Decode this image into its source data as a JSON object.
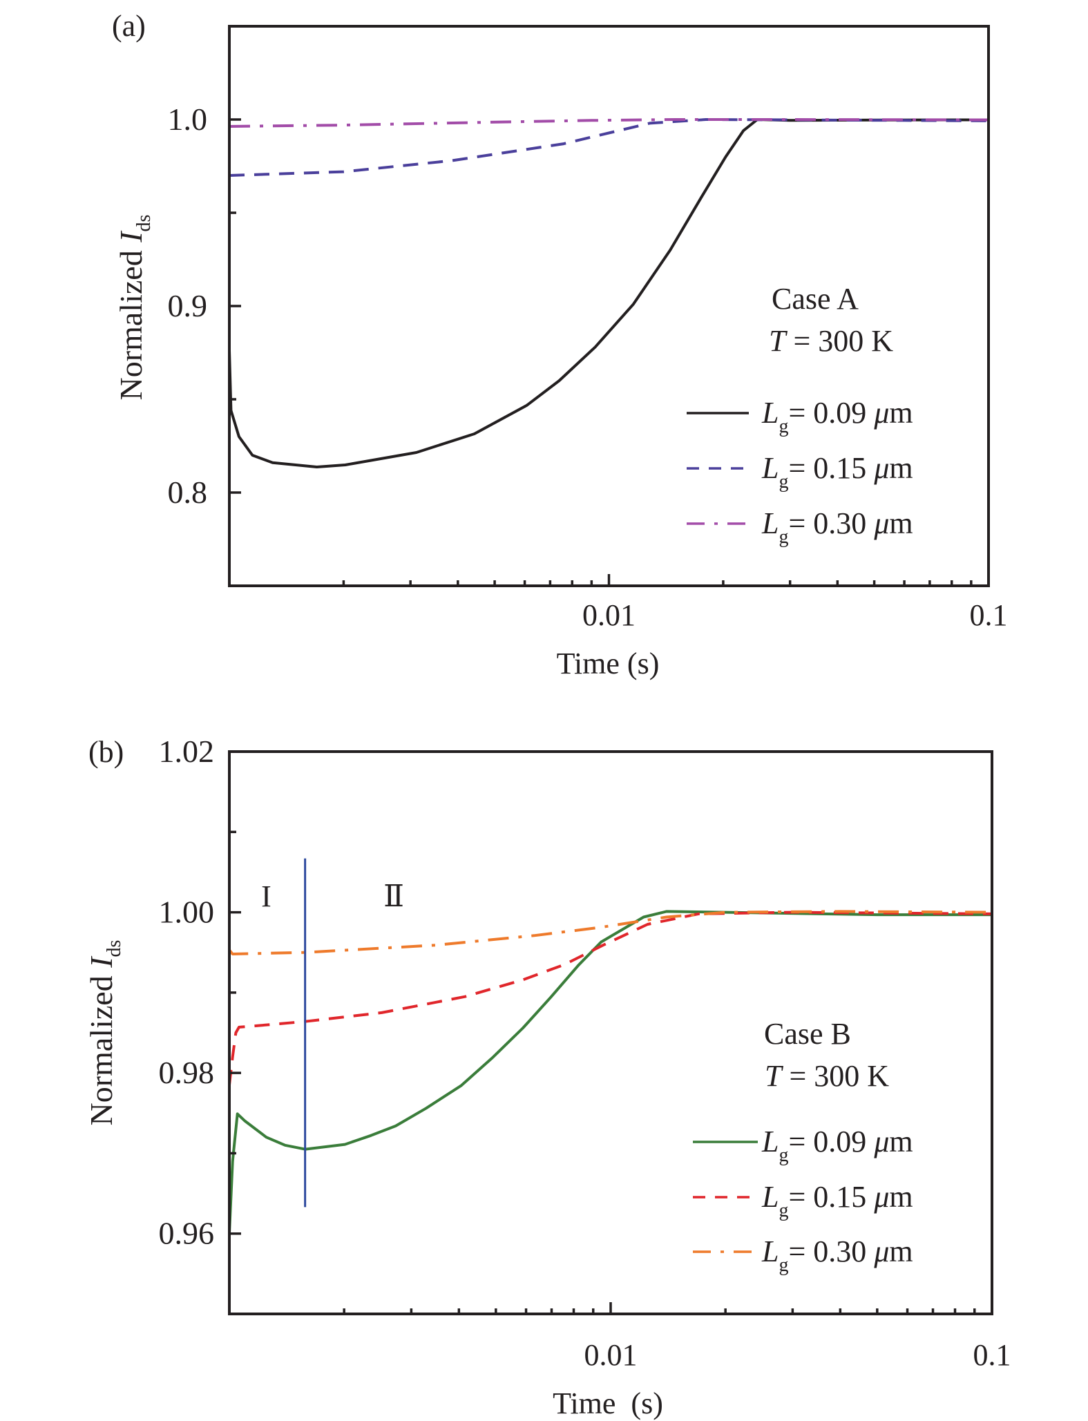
{
  "chart_data": [
    {
      "panel_label": "(a)",
      "type": "line",
      "xlabel": "Time (s)",
      "ylabel": "Normalized I_ds",
      "ylabel_main": "Normalized ",
      "ylabel_italic": "I",
      "ylabel_sub": "ds",
      "xscale": "log",
      "xlim": [
        0.001,
        0.1
      ],
      "ylim": [
        0.75,
        1.05
      ],
      "xticks": [
        {
          "value": 0.01,
          "label": "0.01"
        },
        {
          "value": 0.1,
          "label": "0.1"
        }
      ],
      "yticks": [
        {
          "value": 1.0,
          "label": "1.0"
        },
        {
          "value": 0.9,
          "label": "0.9"
        },
        {
          "value": 0.8,
          "label": "0.8"
        }
      ],
      "yminor": [
        0.95,
        0.85
      ],
      "grid": false,
      "annotation": {
        "line1": "Case A",
        "line2_italic": "T",
        "line2_rest": " = 300 K"
      },
      "legend_position": "right",
      "series": [
        {
          "name": "L_g = 0.09 μm",
          "label_italic": "L",
          "label_sub": "g",
          "label_rest": "= 0.09 ",
          "label_mu": "μ",
          "label_unit": "m",
          "color": "#231f20",
          "dash": "solid",
          "x": [
            0.001,
            0.00101,
            0.00106,
            0.00115,
            0.0013,
            0.0017,
            0.00202,
            0.00311,
            0.00442,
            0.00607,
            0.0074,
            0.0092,
            0.0116,
            0.0145,
            0.0176,
            0.0203,
            0.0226,
            0.0246,
            0.03,
            0.05,
            0.1
          ],
          "y": [
            0.876,
            0.844,
            0.83,
            0.82,
            0.816,
            0.8137,
            0.8148,
            0.8215,
            0.8315,
            0.8467,
            0.86,
            0.878,
            0.901,
            0.93,
            0.959,
            0.98,
            0.994,
            1.0,
            0.9995,
            0.9997,
            0.9998
          ]
        },
        {
          "name": "L_g = 0.15 μm",
          "label_italic": "L",
          "label_sub": "g",
          "label_rest": "= 0.15 ",
          "label_mu": "μ",
          "label_unit": "m",
          "color": "#4a3f9b",
          "dash": "dashed",
          "x": [
            0.001,
            0.002,
            0.00387,
            0.0076,
            0.0128,
            0.018,
            0.03,
            0.06,
            0.1
          ],
          "y": [
            0.97,
            0.972,
            0.978,
            0.987,
            0.998,
            1.0,
            0.9998,
            0.9995,
            0.9993
          ]
        },
        {
          "name": "L_g = 0.30 μm",
          "label_italic": "L",
          "label_sub": "g",
          "label_rest": "= 0.30 ",
          "label_mu": "μ",
          "label_unit": "m",
          "color": "#a24ca8",
          "dash": "dashdot",
          "x": [
            0.001,
            0.002,
            0.0048,
            0.009,
            0.015,
            0.03,
            0.1
          ],
          "y": [
            0.9963,
            0.997,
            0.9985,
            0.9995,
            1.0,
            1.0,
            0.9998
          ]
        }
      ]
    },
    {
      "panel_label": "(b)",
      "type": "line",
      "xlabel": "Time  (s)",
      "ylabel": "Normalized I_ds",
      "ylabel_main": "Normalized ",
      "ylabel_italic": "I",
      "ylabel_sub": "ds",
      "xscale": "log",
      "xlim": [
        0.001,
        0.1
      ],
      "ylim": [
        0.95,
        1.02
      ],
      "xticks": [
        {
          "value": 0.01,
          "label": "0.01"
        },
        {
          "value": 0.1,
          "label": "0.1"
        }
      ],
      "yticks": [
        {
          "value": 1.02,
          "label": "1.02"
        },
        {
          "value": 1.0,
          "label": "1.00"
        },
        {
          "value": 0.98,
          "label": "0.98"
        },
        {
          "value": 0.96,
          "label": "0.96"
        }
      ],
      "yminor": [
        1.01,
        0.99,
        0.97
      ],
      "grid": false,
      "annotation": {
        "line1": "Case B",
        "line2_italic": "T",
        "line2_rest": " = 300 K"
      },
      "regions": [
        {
          "label": "I",
          "x": 0.00125
        },
        {
          "label": "Ⅱ",
          "x": 0.0027
        }
      ],
      "divider": {
        "x": 0.00158,
        "y_from": 0.9633,
        "y_to": 1.0067,
        "color": "#2e4a9e"
      },
      "legend_position": "right",
      "series": [
        {
          "name": "L_g = 0.09 μm",
          "label_italic": "L",
          "label_sub": "g",
          "label_rest": "= 0.09 ",
          "label_mu": "μ",
          "label_unit": "m",
          "color": "#3a7d3a",
          "dash": "solid",
          "x": [
            0.001,
            0.00102,
            0.00105,
            0.0011,
            0.00125,
            0.0014,
            0.00158,
            0.00201,
            0.00235,
            0.00273,
            0.00328,
            0.00405,
            0.0049,
            0.00589,
            0.00696,
            0.00823,
            0.00944,
            0.0122,
            0.014,
            0.02,
            0.05,
            0.1
          ],
          "y": [
            0.96,
            0.969,
            0.9749,
            0.974,
            0.972,
            0.971,
            0.9705,
            0.9711,
            0.9722,
            0.9734,
            0.9756,
            0.9784,
            0.9819,
            0.9856,
            0.9894,
            0.9934,
            0.9963,
            0.9994,
            1.0001,
            1.0,
            0.9997,
            0.9997
          ]
        },
        {
          "name": "L_g = 0.15 μm",
          "label_italic": "L",
          "label_sub": "g",
          "label_rest": "= 0.15 ",
          "label_mu": "μ",
          "label_unit": "m",
          "color": "#e0262b",
          "dash": "dashed",
          "x": [
            0.001,
            0.00102,
            0.00104,
            0.00106,
            0.0012,
            0.00158,
            0.00251,
            0.00415,
            0.00589,
            0.00757,
            0.00955,
            0.0125,
            0.017,
            0.03,
            0.1
          ],
          "y": [
            0.9785,
            0.982,
            0.985,
            0.9857,
            0.9859,
            0.9864,
            0.9875,
            0.9895,
            0.9916,
            0.9935,
            0.9959,
            0.9985,
            0.9998,
            1.0,
            0.9998
          ]
        },
        {
          "name": "L_g = 0.30 μm",
          "label_italic": "L",
          "label_sub": "g",
          "label_rest": "= 0.30 ",
          "label_mu": "μ",
          "label_unit": "m",
          "color": "#ee7a2b",
          "dash": "dashdot",
          "x": [
            0.001,
            0.00102,
            0.00158,
            0.00347,
            0.0063,
            0.00933,
            0.014,
            0.02,
            0.04,
            0.1
          ],
          "y": [
            0.9953,
            0.9948,
            0.995,
            0.9959,
            0.9971,
            0.9981,
            0.9994,
            1.0,
            1.0001,
            1.0
          ]
        }
      ]
    }
  ]
}
